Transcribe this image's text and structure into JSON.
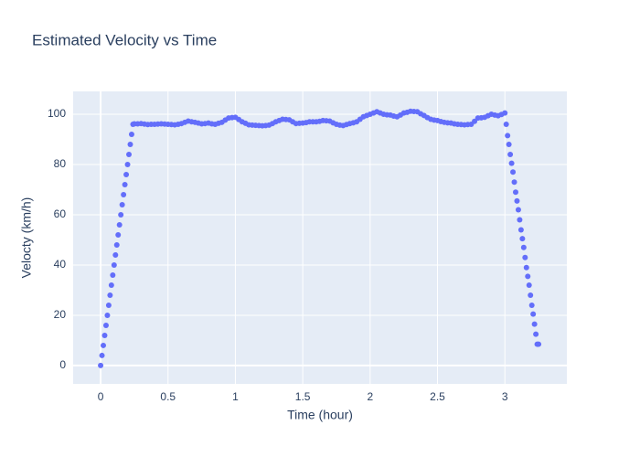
{
  "chart_data": {
    "type": "scatter",
    "title": "Estimated Velocity vs Time",
    "x_label": "Time (hour)",
    "y_label": "Velocty (km/h)",
    "color": "#636efa",
    "grid": true,
    "xlim": [
      -0.204,
      3.46
    ],
    "ylim": [
      -7.3,
      109.1
    ],
    "xticks": [
      0,
      0.5,
      1,
      1.5,
      2,
      2.5,
      3
    ],
    "yticks": [
      0,
      20,
      40,
      60,
      80,
      100
    ],
    "x": [
      0,
      0.01,
      0.02,
      0.03,
      0.04,
      0.05,
      0.06,
      0.07,
      0.08,
      0.09,
      0.1,
      0.11,
      0.12,
      0.13,
      0.14,
      0.15,
      0.16,
      0.17,
      0.18,
      0.19,
      0.2,
      0.21,
      0.22,
      0.23,
      0.24,
      0.25,
      0.275,
      0.3,
      0.325,
      0.35,
      0.375,
      0.4,
      0.425,
      0.45,
      0.475,
      0.5,
      0.525,
      0.55,
      0.575,
      0.6,
      0.625,
      0.65,
      0.675,
      0.7,
      0.725,
      0.75,
      0.775,
      0.8,
      0.825,
      0.85,
      0.875,
      0.9,
      0.925,
      0.95,
      0.975,
      1.0,
      1.025,
      1.05,
      1.075,
      1.1,
      1.125,
      1.15,
      1.175,
      1.2,
      1.225,
      1.25,
      1.275,
      1.3,
      1.325,
      1.35,
      1.375,
      1.4,
      1.425,
      1.45,
      1.475,
      1.5,
      1.525,
      1.55,
      1.575,
      1.6,
      1.625,
      1.65,
      1.675,
      1.7,
      1.725,
      1.75,
      1.775,
      1.8,
      1.825,
      1.85,
      1.875,
      1.9,
      1.925,
      1.95,
      1.975,
      2.0,
      2.025,
      2.05,
      2.075,
      2.1,
      2.125,
      2.15,
      2.175,
      2.2,
      2.225,
      2.25,
      2.275,
      2.3,
      2.325,
      2.35,
      2.375,
      2.4,
      2.425,
      2.45,
      2.475,
      2.5,
      2.525,
      2.55,
      2.575,
      2.6,
      2.625,
      2.65,
      2.675,
      2.7,
      2.725,
      2.75,
      2.775,
      2.8,
      2.825,
      2.85,
      2.875,
      2.9,
      2.925,
      2.95,
      2.975,
      3.0,
      3.01,
      3.02,
      3.03,
      3.04,
      3.05,
      3.06,
      3.07,
      3.08,
      3.09,
      3.1,
      3.11,
      3.12,
      3.13,
      3.14,
      3.15,
      3.16,
      3.17,
      3.18,
      3.19,
      3.2,
      3.21,
      3.22,
      3.23,
      3.24,
      3.25
    ],
    "values": [
      0,
      4,
      8,
      12,
      16,
      20,
      24,
      28,
      32,
      36,
      40,
      44,
      48,
      52,
      56,
      60,
      64,
      68,
      72,
      76,
      80,
      84,
      88,
      92,
      96,
      96.2,
      96.2,
      96.3,
      96.1,
      95.9,
      96,
      96,
      96.1,
      96.2,
      96.1,
      96,
      95.9,
      95.8,
      96,
      96.3,
      96.8,
      97.3,
      97,
      96.8,
      96.5,
      96.2,
      96.3,
      96.5,
      96.2,
      96,
      96.4,
      96.8,
      97.7,
      98.5,
      98.7,
      98.8,
      97.9,
      97,
      96.4,
      95.8,
      95.7,
      95.6,
      95.5,
      95.4,
      95.5,
      95.7,
      96.3,
      97,
      97.5,
      98,
      97.9,
      97.8,
      97,
      96.3,
      96.4,
      96.5,
      96.7,
      97,
      97,
      97,
      97.2,
      97.5,
      97.4,
      97.3,
      96.6,
      96,
      95.7,
      95.5,
      95.9,
      96.3,
      96.6,
      97,
      98,
      99,
      99.5,
      100,
      100.5,
      101,
      100.5,
      100,
      99.8,
      99.7,
      99.3,
      99,
      99.7,
      100.5,
      100.8,
      101.2,
      101.1,
      101,
      100.2,
      99.5,
      98.7,
      98,
      97.7,
      97.5,
      97.1,
      96.8,
      96.6,
      96.5,
      96.2,
      96,
      95.9,
      95.8,
      95.9,
      96,
      97.2,
      98.5,
      98.6,
      98.8,
      99.4,
      100,
      99.7,
      99.4,
      99.9,
      100.5,
      96,
      91.5,
      88,
      84,
      80.5,
      77,
      73,
      69,
      65.5,
      62,
      58,
      54,
      50.5,
      47,
      43,
      39,
      35.5,
      32,
      28,
      24,
      20.5,
      16.5,
      12.5,
      8.5,
      8.5
    ]
  }
}
